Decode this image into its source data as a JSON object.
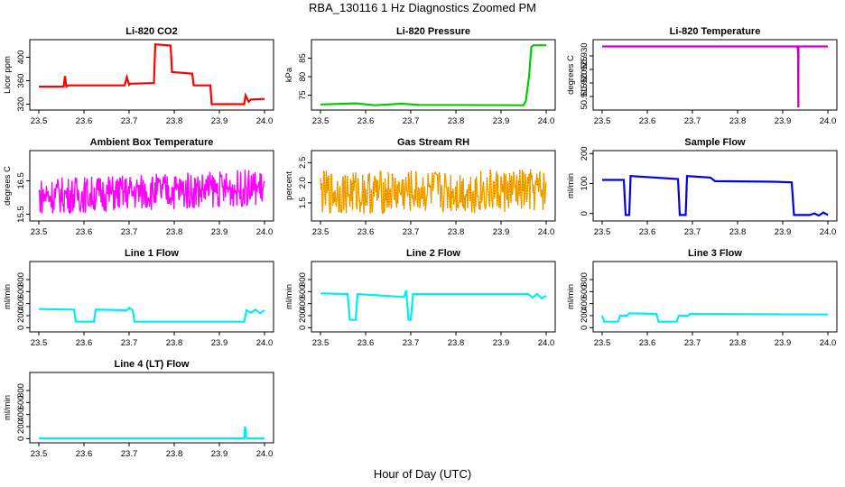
{
  "figure": {
    "title": "RBA_130116  1 Hz Diagnostics Zoomed PM",
    "xlabel": "Hour of Day (UTC)"
  },
  "chart_data": [
    {
      "type": "line",
      "title": "Li-820 CO2",
      "ylabel": "Licor ppm",
      "xlim": [
        23.5,
        24.0
      ],
      "xticks": [
        23.5,
        23.6,
        23.7,
        23.8,
        23.9,
        24.0
      ],
      "ylim": [
        310,
        430
      ],
      "yticks": [
        320,
        360,
        400
      ],
      "color": "#ff0000",
      "series": [
        {
          "x": [
            23.5,
            23.555,
            23.558,
            23.561,
            23.565,
            23.69,
            23.695,
            23.7,
            23.703,
            23.755,
            23.758,
            23.792,
            23.795,
            23.84,
            23.843,
            23.88,
            23.883,
            23.955,
            23.958,
            23.965,
            23.97,
            24.0
          ],
          "y": [
            350,
            350,
            368,
            350,
            352,
            352,
            366,
            353,
            355,
            356,
            422,
            420,
            375,
            372,
            352,
            352,
            320,
            320,
            335,
            324,
            328,
            329
          ]
        }
      ]
    },
    {
      "type": "line",
      "title": "Li-820 Pressure",
      "ylabel": "kPa",
      "xlim": [
        23.5,
        24.0
      ],
      "xticks": [
        23.5,
        23.6,
        23.7,
        23.8,
        23.9,
        24.0
      ],
      "ylim": [
        71,
        90
      ],
      "yticks": [
        75,
        80,
        85
      ],
      "color": "#00cc00",
      "series": [
        {
          "x": [
            23.5,
            23.58,
            23.62,
            23.68,
            23.72,
            23.95,
            23.955,
            23.962,
            23.967,
            23.972,
            24.0
          ],
          "y": [
            72.5,
            72.8,
            72.3,
            72.7,
            72.4,
            72.3,
            73.5,
            80.0,
            88.0,
            88.5,
            88.5
          ]
        }
      ]
    },
    {
      "type": "line",
      "title": "Li-820 Temperature",
      "ylabel": "degrees C",
      "xlim": [
        23.5,
        24.0
      ],
      "xticks": [
        23.5,
        23.6,
        23.7,
        23.8,
        23.9,
        24.0
      ],
      "ylim": [
        50.91,
        50.936
      ],
      "yticks": [
        50.915,
        50.92,
        50.925,
        50.93
      ],
      "color": "#cc00cc",
      "series": [
        {
          "x": [
            23.5,
            23.933,
            23.934,
            23.9345,
            23.935,
            24.0
          ],
          "y": [
            50.9335,
            50.9335,
            50.931,
            50.911,
            50.9335,
            50.9335
          ]
        }
      ]
    },
    {
      "type": "line",
      "title": "Ambient Box Temperature",
      "ylabel": "degrees C",
      "xlim": [
        23.5,
        24.0
      ],
      "xticks": [
        23.5,
        23.6,
        23.7,
        23.8,
        23.9,
        24.0
      ],
      "ylim": [
        15.3,
        17.4
      ],
      "yticks": [
        15.5,
        16.5
      ],
      "color": "#ff00ff",
      "noise": {
        "center_start": 16.05,
        "center_end": 16.3,
        "amplitude": 0.55,
        "points": 360
      }
    },
    {
      "type": "line",
      "title": "Gas Stream RH",
      "ylabel": "percent",
      "xlim": [
        23.5,
        24.0
      ],
      "xticks": [
        23.5,
        23.6,
        23.7,
        23.8,
        23.9,
        24.0
      ],
      "ylim": [
        1.05,
        2.8
      ],
      "yticks": [
        1.5,
        2.0,
        2.5
      ],
      "color": "#ffaa00",
      "secondary_color": "#996600",
      "noise": {
        "center_start": 1.75,
        "center_end": 1.8,
        "amplitude": 0.55,
        "points": 360
      }
    },
    {
      "type": "line",
      "title": "Sample Flow",
      "ylabel": "ml/min",
      "xlim": [
        23.5,
        24.0
      ],
      "xticks": [
        23.5,
        23.6,
        23.7,
        23.8,
        23.9,
        24.0
      ],
      "ylim": [
        -25,
        210
      ],
      "yticks": [
        0,
        100,
        200
      ],
      "color": "#0000ee",
      "series": [
        {
          "x": [
            23.5,
            23.548,
            23.552,
            23.56,
            23.563,
            23.668,
            23.672,
            23.685,
            23.688,
            23.74,
            23.75,
            23.88,
            23.92,
            23.925,
            23.96,
            23.97,
            23.98,
            23.99,
            24.0
          ],
          "y": [
            112,
            112,
            -5,
            -5,
            125,
            115,
            -5,
            -5,
            125,
            120,
            108,
            106,
            104,
            -5,
            -5,
            0,
            -7,
            3,
            -5
          ]
        }
      ]
    },
    {
      "type": "line",
      "title": "Line 1 Flow",
      "ylabel": "ml/min",
      "xlim": [
        23.5,
        24.0
      ],
      "xticks": [
        23.5,
        23.6,
        23.7,
        23.8,
        23.9,
        24.0
      ],
      "ylim": [
        -70,
        1100
      ],
      "yticks": [
        0,
        200,
        400,
        600,
        800
      ],
      "color": "#00eeee",
      "series": [
        {
          "x": [
            23.5,
            23.578,
            23.582,
            23.622,
            23.626,
            23.695,
            23.7,
            23.708,
            23.712,
            23.955,
            23.96,
            23.97,
            23.98,
            23.99,
            24.0
          ],
          "y": [
            310,
            300,
            100,
            100,
            300,
            290,
            330,
            290,
            100,
            100,
            290,
            250,
            300,
            240,
            290
          ]
        }
      ]
    },
    {
      "type": "line",
      "title": "Line 2 Flow",
      "ylabel": "ml/min",
      "xlim": [
        23.5,
        24.0
      ],
      "xticks": [
        23.5,
        23.6,
        23.7,
        23.8,
        23.9,
        24.0
      ],
      "ylim": [
        -70,
        1100
      ],
      "yticks": [
        0,
        200,
        400,
        600,
        800
      ],
      "color": "#00eeee",
      "series": [
        {
          "x": [
            23.5,
            23.56,
            23.565,
            23.578,
            23.582,
            23.685,
            23.69,
            23.695,
            23.7,
            23.705,
            23.96,
            23.97,
            23.98,
            23.99,
            24.0
          ],
          "y": [
            570,
            560,
            130,
            130,
            560,
            510,
            620,
            130,
            130,
            560,
            560,
            500,
            560,
            490,
            530
          ]
        }
      ]
    },
    {
      "type": "line",
      "title": "Line 3 Flow",
      "ylabel": "ml/min",
      "xlim": [
        23.5,
        24.0
      ],
      "xticks": [
        23.5,
        23.6,
        23.7,
        23.8,
        23.9,
        24.0
      ],
      "ylim": [
        -70,
        1100
      ],
      "yticks": [
        0,
        200,
        400,
        600,
        800
      ],
      "color": "#00eeee",
      "series": [
        {
          "x": [
            23.5,
            23.502,
            23.505,
            23.535,
            23.54,
            23.555,
            23.56,
            23.62,
            23.625,
            23.665,
            23.67,
            23.69,
            23.695,
            24.0
          ],
          "y": [
            200,
            150,
            100,
            100,
            200,
            200,
            240,
            230,
            100,
            100,
            200,
            200,
            230,
            220
          ]
        }
      ]
    },
    {
      "type": "line",
      "title": "Line 4 (LT) Flow",
      "ylabel": "ml/min",
      "xlim": [
        23.5,
        24.0
      ],
      "xticks": [
        23.5,
        23.6,
        23.7,
        23.8,
        23.9,
        24.0
      ],
      "ylim": [
        -70,
        1100
      ],
      "yticks": [
        0,
        200,
        400,
        600,
        800
      ],
      "color": "#00eeee",
      "series": [
        {
          "x": [
            23.5,
            23.955,
            23.957,
            23.959,
            23.961,
            24.0
          ],
          "y": [
            5,
            5,
            200,
            30,
            5,
            5
          ]
        }
      ]
    }
  ]
}
